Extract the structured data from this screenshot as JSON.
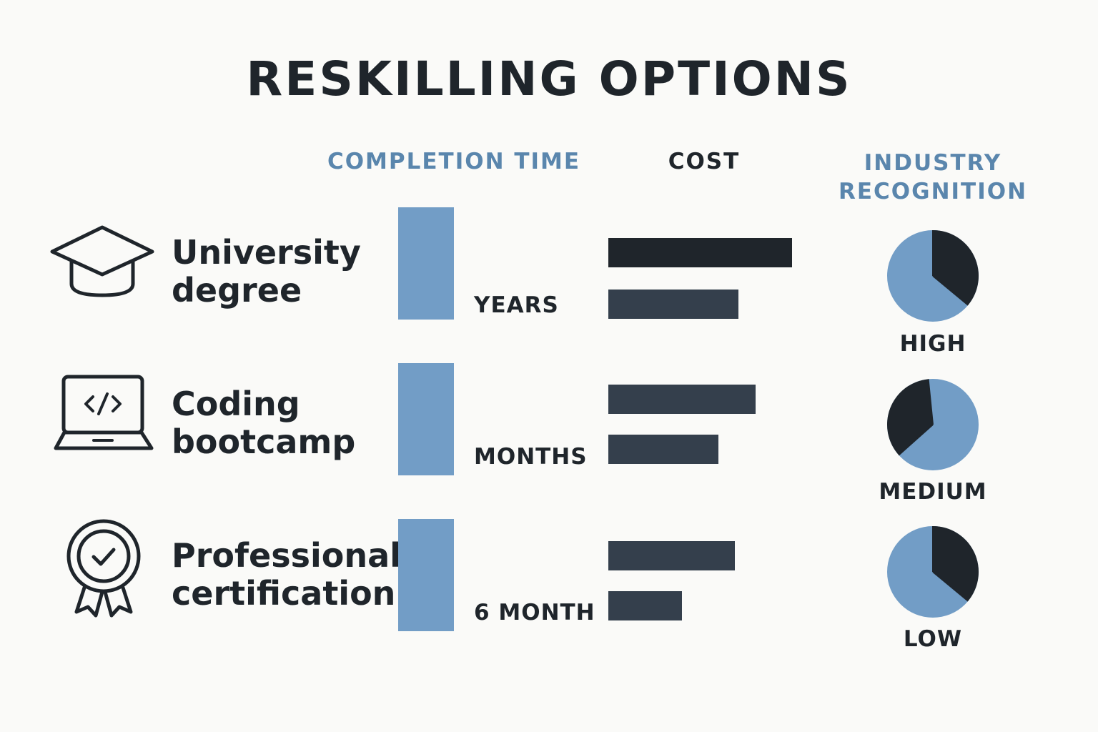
{
  "title": "RESKILLING OPTIONS",
  "headers": {
    "completion_time": "COMPLETION TIME",
    "cost": "COST",
    "industry_recognition": "INDUSTRY RECOGNITION"
  },
  "colors": {
    "blue": "#729dc6",
    "dark": "#1f252b",
    "slate": "#343f4c",
    "header_blue": "#5a86ad"
  },
  "rows": [
    {
      "icon": "graduation-cap-icon",
      "label_line1": "University",
      "label_line2": "degree",
      "time_label": "YEARS",
      "recognition": "HIGH"
    },
    {
      "icon": "laptop-code-icon",
      "label_line1": "Coding",
      "label_line2": "bootcamp",
      "time_label": "MONTHS",
      "recognition": "MEDIUM"
    },
    {
      "icon": "certificate-badge-icon",
      "label_line1": "Professional",
      "label_line2": "certification",
      "time_label": "6 MONTH",
      "recognition": "LOW"
    }
  ],
  "chart_data": {
    "type": "table",
    "title": "RESKILLING OPTIONS",
    "columns": [
      "COMPLETION TIME",
      "COST",
      "INDUSTRY RECOGNITION"
    ],
    "categories": [
      "University degree",
      "Coding bootcamp",
      "Professional certification"
    ],
    "completion_time": {
      "labels": [
        "YEARS",
        "MONTHS",
        "6 MONTH"
      ],
      "bar_values": [
        1,
        1,
        1
      ]
    },
    "cost": {
      "series": [
        {
          "values": [
            1.0,
            0.8,
            0.69
          ]
        },
        {
          "values": [
            0.71,
            0.6,
            0.4
          ]
        }
      ]
    },
    "industry_recognition": {
      "labels": [
        "HIGH",
        "MEDIUM",
        "LOW"
      ],
      "dark_share": [
        0.36,
        0.35,
        0.36
      ]
    }
  }
}
